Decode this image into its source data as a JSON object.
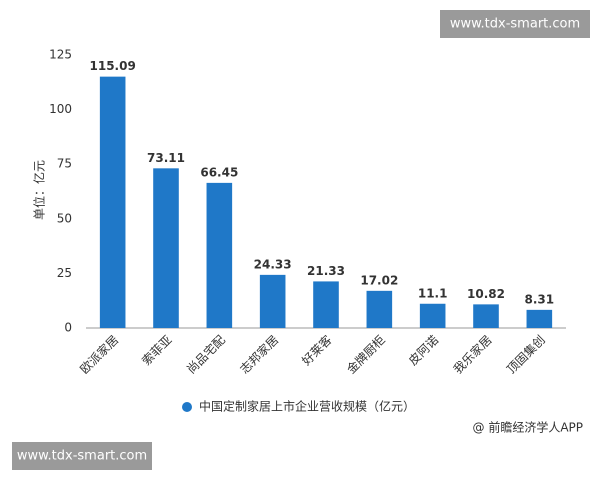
{
  "chart_data": {
    "type": "bar",
    "y_label": "单位：亿元",
    "categories": [
      "欧派家居",
      "索菲亚",
      "尚品宅配",
      "志邦家居",
      "好莱客",
      "金牌厨柜",
      "皮阿诺",
      "我乐家居",
      "顶固集创"
    ],
    "series": [
      {
        "name": "中国定制家居上市企业营收规模（亿元）",
        "color": "#1f78c8",
        "values": [
          115.09,
          73.11,
          66.45,
          24.33,
          21.33,
          17.02,
          11.1,
          10.82,
          8.31
        ]
      }
    ],
    "ylim": [
      0,
      125
    ],
    "yticks": [
      0,
      25,
      50,
      75,
      100,
      125
    ],
    "grid": false,
    "legend": "bottom"
  },
  "source": "@ 前瞻经济学人APP",
  "watermarks": [
    "www.tdx-smart.com",
    "www.tdx-smart.com"
  ]
}
